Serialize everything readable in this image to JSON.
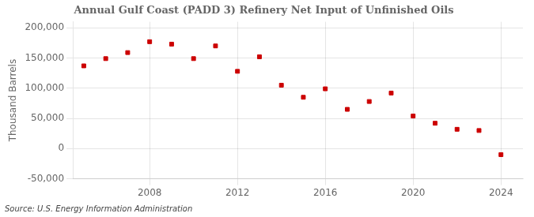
{
  "chart_data": {
    "type": "scatter",
    "title": "Annual Gulf Coast (PADD 3) Refinery Net Input of Unfinished Oils",
    "ylabel": "Thousand Barrels",
    "annotations": [
      "Source: U.S. Energy Information Administration"
    ],
    "x": [
      2005,
      2006,
      2007,
      2008,
      2009,
      2010,
      2011,
      2012,
      2013,
      2014,
      2015,
      2016,
      2017,
      2018,
      2019,
      2020,
      2021,
      2022,
      2023,
      2024
    ],
    "values": [
      137000,
      149000,
      159000,
      177000,
      173000,
      149000,
      170000,
      128000,
      152000,
      105000,
      85000,
      99000,
      65000,
      78000,
      92000,
      54000,
      42000,
      32000,
      30000,
      -10000
    ],
    "color": "#cc0000",
    "marker": "square",
    "xlim": [
      2004.5,
      2025
    ],
    "ylim": [
      -50000,
      210000
    ],
    "xticks": [
      2008,
      2012,
      2016,
      2020,
      2024
    ],
    "yticks": [
      {
        "value": -50000,
        "label": "-50,000"
      },
      0,
      {
        "value": 50000,
        "label": "50,000"
      },
      {
        "value": 100000,
        "label": "100,000"
      },
      {
        "value": 150000,
        "label": "150,000"
      },
      {
        "value": 200000,
        "label": "200,000"
      }
    ],
    "grid": true
  }
}
